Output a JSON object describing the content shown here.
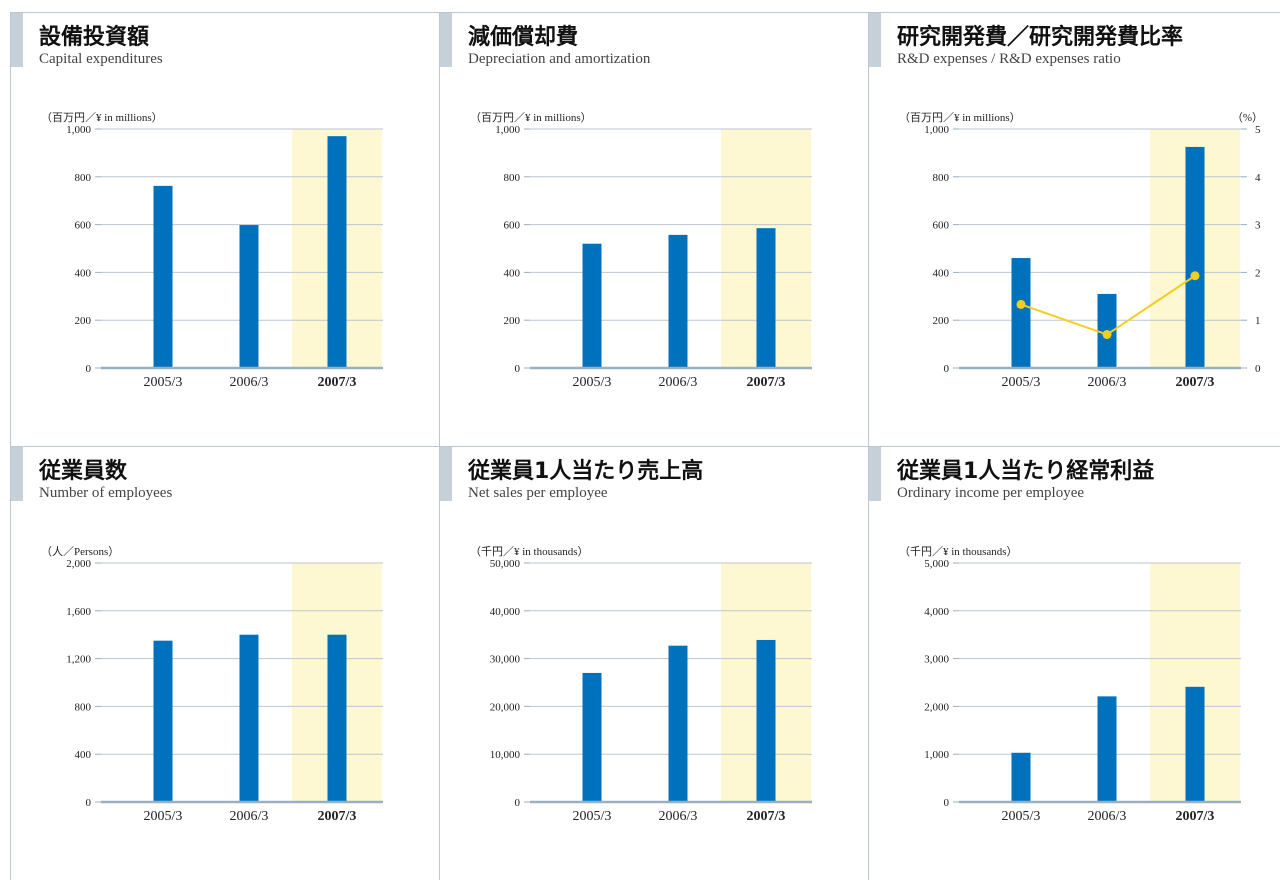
{
  "colors": {
    "bar": "#0071bc",
    "line": "#f5cd1e",
    "highlight": "#fdf8d2",
    "grid": "#bcc6d0",
    "axis": "#9aafbf",
    "panel_border": "#b9c7d1",
    "accent": "#c5d0d8"
  },
  "panels": [
    {
      "title": "設備投資額",
      "subtitle": "Capital expenditures",
      "unit_left": "（百万円／¥ in millions）",
      "unit_right": ""
    },
    {
      "title": "減価償却費",
      "subtitle": "Depreciation and amortization",
      "unit_left": "（百万円／¥ in millions）",
      "unit_right": ""
    },
    {
      "title": "研究開発費／研究開発費比率",
      "subtitle": "R&D expenses / R&D expenses ratio",
      "unit_left": "（百万円／¥ in millions）",
      "unit_right": "（%）"
    },
    {
      "title": "従業員数",
      "subtitle": "Number of employees",
      "unit_left": "（人／Persons）",
      "unit_right": ""
    },
    {
      "title": "従業員1人当たり売上高",
      "subtitle": "Net sales per employee",
      "unit_left": "（千円／¥ in thousands）",
      "unit_right": ""
    },
    {
      "title": "従業員1人当たり経常利益",
      "subtitle": "Ordinary income per employee",
      "unit_left": "（千円／¥ in thousands）",
      "unit_right": ""
    }
  ],
  "chart_data": [
    {
      "type": "bar",
      "categories": [
        "2005/3",
        "2006/3",
        "2007/3"
      ],
      "highlight_category": "2007/3",
      "values": [
        762,
        598,
        970
      ],
      "ylim": [
        0,
        1000
      ],
      "yticks": [
        0,
        200,
        400,
        600,
        800,
        1000
      ],
      "ytick_labels": [
        "0",
        "200",
        "400",
        "600",
        "800",
        "1,000"
      ],
      "grid": true
    },
    {
      "type": "bar",
      "categories": [
        "2005/3",
        "2006/3",
        "2007/3"
      ],
      "highlight_category": "2007/3",
      "values": [
        520,
        557,
        585
      ],
      "ylim": [
        0,
        1000
      ],
      "yticks": [
        0,
        200,
        400,
        600,
        800,
        1000
      ],
      "ytick_labels": [
        "0",
        "200",
        "400",
        "600",
        "800",
        "1,000"
      ],
      "grid": true
    },
    {
      "type": "bar",
      "categories": [
        "2005/3",
        "2006/3",
        "2007/3"
      ],
      "highlight_category": "2007/3",
      "values": [
        460,
        310,
        925
      ],
      "ylim": [
        0,
        1000
      ],
      "yticks": [
        0,
        200,
        400,
        600,
        800,
        1000
      ],
      "ytick_labels": [
        "0",
        "200",
        "400",
        "600",
        "800",
        "1,000"
      ],
      "line_values": [
        1.33,
        0.7,
        1.93
      ],
      "y2lim": [
        0,
        5
      ],
      "y2ticks": [
        0,
        1,
        2,
        3,
        4,
        5
      ],
      "y2tick_labels": [
        "0",
        "1",
        "2",
        "3",
        "4",
        "5"
      ],
      "grid": true
    },
    {
      "type": "bar",
      "categories": [
        "2005/3",
        "2006/3",
        "2007/3"
      ],
      "highlight_category": "2007/3",
      "values": [
        1350,
        1400,
        1400
      ],
      "ylim": [
        0,
        2000
      ],
      "yticks": [
        0,
        400,
        800,
        1200,
        1600,
        2000
      ],
      "ytick_labels": [
        "0",
        "400",
        "800",
        "1,200",
        "1,600",
        "2,000"
      ],
      "grid": true
    },
    {
      "type": "bar",
      "categories": [
        "2005/3",
        "2006/3",
        "2007/3"
      ],
      "highlight_category": "2007/3",
      "values": [
        27000,
        32700,
        33900
      ],
      "ylim": [
        0,
        50000
      ],
      "yticks": [
        0,
        10000,
        20000,
        30000,
        40000,
        50000
      ],
      "ytick_labels": [
        "0",
        "10,000",
        "20,000",
        "30,000",
        "40,000",
        "50,000"
      ],
      "grid": true
    },
    {
      "type": "bar",
      "categories": [
        "2005/3",
        "2006/3",
        "2007/3"
      ],
      "highlight_category": "2007/3",
      "values": [
        1030,
        2210,
        2410
      ],
      "ylim": [
        0,
        5000
      ],
      "yticks": [
        0,
        1000,
        2000,
        3000,
        4000,
        5000
      ],
      "ytick_labels": [
        "0",
        "1,000",
        "2,000",
        "3,000",
        "4,000",
        "5,000"
      ],
      "grid": true
    }
  ]
}
